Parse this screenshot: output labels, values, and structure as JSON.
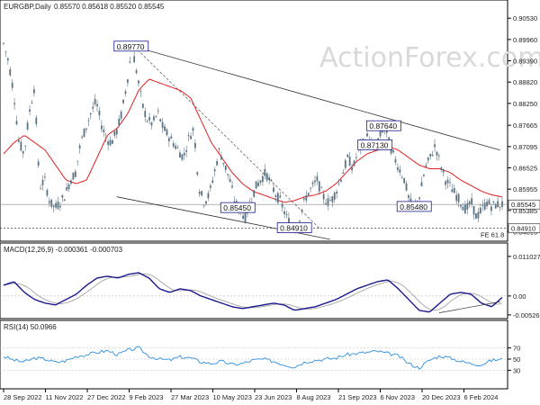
{
  "header": {
    "symbol": "EURGBP,Daily",
    "ohlc": "0.85570 0.85618 0.85520 0.85545"
  },
  "watermark": "ActionForex.com",
  "colors": {
    "candle": "#5a7282",
    "ma": "#e02020",
    "channel": "#333333",
    "macd": "#1a1a8c",
    "signal": "#999999",
    "rsi": "#2f8fe0",
    "label_border": "#1a1a8c"
  },
  "chart_data": [
    {
      "type": "candlestick",
      "price_labels": [
        "0.90530",
        "0.89960",
        "0.89390",
        "0.88820",
        "0.88250",
        "0.87665",
        "0.87095",
        "0.86525",
        "0.85955",
        "0.85385",
        "0.84815"
      ],
      "ylim": [
        0.8461,
        0.9068
      ],
      "current_price": "0.85545",
      "support_price": "0.84910",
      "support_label_suffix": "FE 61.8",
      "x_tick_labels": [
        "28 Sep 2022",
        "11 Nov 2022",
        "27 Dec 2022",
        "9 Feb 2023",
        "27 Mar 2023",
        "10 May 2023",
        "23 Jun 2023",
        "8 Aug 2023",
        "21 Sep 2023",
        "6 Nov 2023",
        "20 Dec 2023",
        "6 Feb 2024"
      ],
      "annotations": [
        {
          "text": "0.89770",
          "value": 0.8977
        },
        {
          "text": "0.85450",
          "value": 0.8545
        },
        {
          "text": "0.84910",
          "value": 0.8491
        },
        {
          "text": "0.87640",
          "value": 0.8764
        },
        {
          "text": "0.87130",
          "value": 0.8713
        },
        {
          "text": "0.85480",
          "value": 0.8548
        }
      ],
      "anchors": [
        [
          0.8985,
          0.8935
        ],
        [
          0.885,
          0.872
        ],
        [
          0.869,
          0.88
        ],
        [
          0.887,
          0.86
        ],
        [
          0.862,
          0.856
        ],
        [
          0.8545,
          0.856
        ],
        [
          0.858,
          0.862
        ],
        [
          0.864,
          0.872
        ],
        [
          0.876,
          0.88
        ],
        [
          0.883,
          0.877
        ],
        [
          0.873,
          0.872
        ],
        [
          0.875,
          0.88
        ],
        [
          0.888,
          0.8977
        ],
        [
          0.89,
          0.882
        ],
        [
          0.878,
          0.877
        ],
        [
          0.88,
          0.876
        ],
        [
          0.874,
          0.872
        ],
        [
          0.87,
          0.868
        ],
        [
          0.873,
          0.876
        ],
        [
          0.86,
          0.856
        ],
        [
          0.858,
          0.864
        ],
        [
          0.87,
          0.866
        ],
        [
          0.862,
          0.856
        ],
        [
          0.854,
          0.852
        ],
        [
          0.856,
          0.86
        ],
        [
          0.862,
          0.864
        ],
        [
          0.861,
          0.858
        ],
        [
          0.856,
          0.852
        ],
        [
          0.85,
          0.8491
        ],
        [
          0.854,
          0.858
        ],
        [
          0.86,
          0.862
        ],
        [
          0.858,
          0.856
        ],
        [
          0.857,
          0.86
        ],
        [
          0.864,
          0.868
        ],
        [
          0.865,
          0.87
        ],
        [
          0.872,
          0.874
        ],
        [
          0.87,
          0.873
        ],
        [
          0.8764,
          0.872
        ],
        [
          0.868,
          0.865
        ],
        [
          0.862,
          0.856
        ],
        [
          0.8548,
          0.858
        ],
        [
          0.865,
          0.868
        ],
        [
          0.8713,
          0.866
        ],
        [
          0.862,
          0.86
        ],
        [
          0.858,
          0.856
        ],
        [
          0.854,
          0.856
        ],
        [
          0.852,
          0.854
        ],
        [
          0.856,
          0.855
        ],
        [
          0.8555,
          0.85545
        ]
      ],
      "ma_anchors": [
        0.869,
        0.872,
        0.874,
        0.872,
        0.87,
        0.866,
        0.862,
        0.861,
        0.862,
        0.868,
        0.874,
        0.876,
        0.88,
        0.886,
        0.889,
        0.888,
        0.887,
        0.886,
        0.884,
        0.878,
        0.872,
        0.868,
        0.864,
        0.861,
        0.859,
        0.858,
        0.857,
        0.856,
        0.8565,
        0.8575,
        0.858,
        0.859,
        0.861,
        0.864,
        0.867,
        0.869,
        0.87,
        0.871,
        0.87,
        0.868,
        0.866,
        0.865,
        0.865,
        0.864,
        0.862,
        0.8605,
        0.859,
        0.858,
        0.8575
      ]
    },
    {
      "type": "line",
      "title": "MACD(12,26,9) -0.000361 -0.000703",
      "tick_labels": [
        "0.011027",
        "0.00",
        "-0.005267"
      ],
      "ylim": [
        -0.0058,
        0.0115
      ],
      "current_value_label": "0.00",
      "macd_anchors": [
        0.003,
        0.004,
        0.001,
        -0.001,
        -0.002,
        -0.0025,
        -0.001,
        0.0005,
        0.003,
        0.005,
        0.0055,
        0.005,
        0.006,
        0.0065,
        0.005,
        0.002,
        0.001,
        0.002,
        0.0015,
        0.0,
        -0.001,
        -0.002,
        -0.003,
        -0.0035,
        -0.003,
        -0.0025,
        -0.002,
        -0.0025,
        -0.004,
        -0.0035,
        -0.003,
        -0.002,
        -0.001,
        0.0005,
        0.002,
        0.003,
        0.004,
        0.0045,
        0.002,
        -0.001,
        -0.004,
        -0.0045,
        -0.002,
        0.0005,
        0.001,
        0.0005,
        -0.002,
        -0.003,
        -0.0004
      ]
    },
    {
      "type": "line",
      "title": "RSI(14) 50.0966",
      "tick_labels": [
        "70",
        "50",
        "30"
      ],
      "ylim": [
        0,
        100
      ],
      "rsi_anchors": [
        55,
        48,
        45,
        52,
        50,
        44,
        47,
        55,
        58,
        62,
        65,
        58,
        66,
        70,
        55,
        50,
        48,
        54,
        52,
        45,
        42,
        46,
        40,
        42,
        48,
        50,
        46,
        40,
        36,
        45,
        48,
        50,
        52,
        58,
        60,
        62,
        64,
        60,
        56,
        42,
        34,
        48,
        56,
        52,
        46,
        42,
        40,
        48,
        50
      ]
    }
  ]
}
